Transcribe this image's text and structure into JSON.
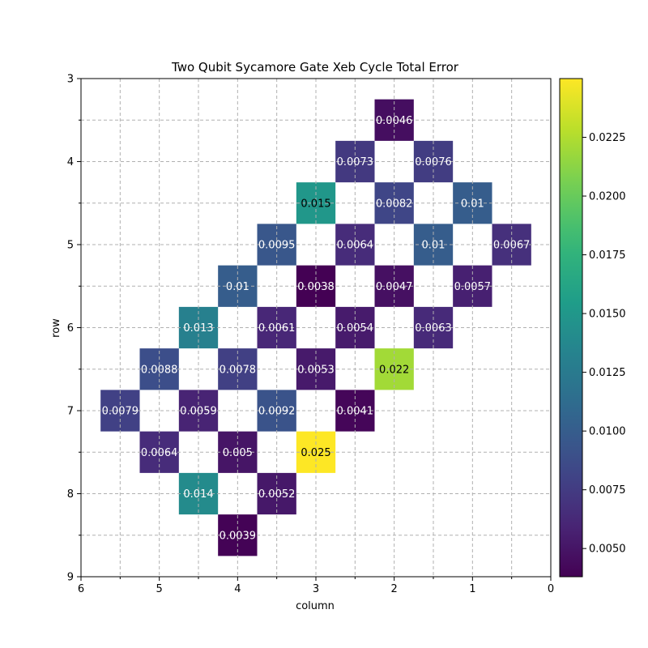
{
  "chart_data": {
    "type": "heatmap",
    "title": "Two Qubit Sycamore Gate Xeb Cycle Total Error",
    "xlabel": "column",
    "ylabel": "row",
    "xlim": [
      6,
      0
    ],
    "ylim": [
      9,
      3
    ],
    "x_ticks": [
      "6",
      "5",
      "4",
      "3",
      "2",
      "1",
      "0"
    ],
    "y_ticks": [
      "3",
      "4",
      "5",
      "6",
      "7",
      "8",
      "9"
    ],
    "grid": true,
    "colormap": "viridis",
    "colorbar": {
      "min": 0.0038,
      "max": 0.025,
      "ticks": [
        "0.0050",
        "0.0075",
        "0.0100",
        "0.0125",
        "0.0150",
        "0.0175",
        "0.0200",
        "0.0225"
      ]
    },
    "cells": [
      {
        "row": 3.5,
        "col": 2.0,
        "value": 0.0046,
        "label": "0.0046"
      },
      {
        "row": 4.0,
        "col": 2.5,
        "value": 0.0073,
        "label": "0.0073"
      },
      {
        "row": 4.0,
        "col": 1.5,
        "value": 0.0076,
        "label": "0.0076"
      },
      {
        "row": 4.5,
        "col": 3.0,
        "value": 0.015,
        "label": "0.015"
      },
      {
        "row": 4.5,
        "col": 2.0,
        "value": 0.0082,
        "label": "0.0082"
      },
      {
        "row": 4.5,
        "col": 1.0,
        "value": 0.01,
        "label": "0.01"
      },
      {
        "row": 5.0,
        "col": 3.5,
        "value": 0.0095,
        "label": "0.0095"
      },
      {
        "row": 5.0,
        "col": 2.5,
        "value": 0.0064,
        "label": "0.0064"
      },
      {
        "row": 5.0,
        "col": 1.5,
        "value": 0.01,
        "label": "0.01"
      },
      {
        "row": 5.0,
        "col": 0.5,
        "value": 0.0067,
        "label": "0.0067"
      },
      {
        "row": 5.5,
        "col": 4.0,
        "value": 0.01,
        "label": "0.01"
      },
      {
        "row": 5.5,
        "col": 3.0,
        "value": 0.0038,
        "label": "0.0038"
      },
      {
        "row": 5.5,
        "col": 2.0,
        "value": 0.0047,
        "label": "0.0047"
      },
      {
        "row": 5.5,
        "col": 1.0,
        "value": 0.0057,
        "label": "0.0057"
      },
      {
        "row": 6.0,
        "col": 4.5,
        "value": 0.013,
        "label": "0.013"
      },
      {
        "row": 6.0,
        "col": 3.5,
        "value": 0.0061,
        "label": "0.0061"
      },
      {
        "row": 6.0,
        "col": 2.5,
        "value": 0.0054,
        "label": "0.0054"
      },
      {
        "row": 6.0,
        "col": 1.5,
        "value": 0.0063,
        "label": "0.0063"
      },
      {
        "row": 6.5,
        "col": 5.0,
        "value": 0.0088,
        "label": "0.0088"
      },
      {
        "row": 6.5,
        "col": 4.0,
        "value": 0.0078,
        "label": "0.0078"
      },
      {
        "row": 6.5,
        "col": 3.0,
        "value": 0.0053,
        "label": "0.0053"
      },
      {
        "row": 6.5,
        "col": 2.0,
        "value": 0.022,
        "label": "0.022"
      },
      {
        "row": 7.0,
        "col": 5.5,
        "value": 0.0079,
        "label": "0.0079"
      },
      {
        "row": 7.0,
        "col": 4.5,
        "value": 0.0059,
        "label": "0.0059"
      },
      {
        "row": 7.0,
        "col": 3.5,
        "value": 0.0092,
        "label": "0.0092"
      },
      {
        "row": 7.0,
        "col": 2.5,
        "value": 0.0041,
        "label": "0.0041"
      },
      {
        "row": 7.5,
        "col": 5.0,
        "value": 0.0064,
        "label": "0.0064"
      },
      {
        "row": 7.5,
        "col": 4.0,
        "value": 0.005,
        "label": "0.005"
      },
      {
        "row": 7.5,
        "col": 3.0,
        "value": 0.025,
        "label": "0.025"
      },
      {
        "row": 8.0,
        "col": 4.5,
        "value": 0.014,
        "label": "0.014"
      },
      {
        "row": 8.0,
        "col": 3.5,
        "value": 0.0052,
        "label": "0.0052"
      },
      {
        "row": 8.5,
        "col": 4.0,
        "value": 0.0039,
        "label": "0.0039"
      }
    ]
  }
}
